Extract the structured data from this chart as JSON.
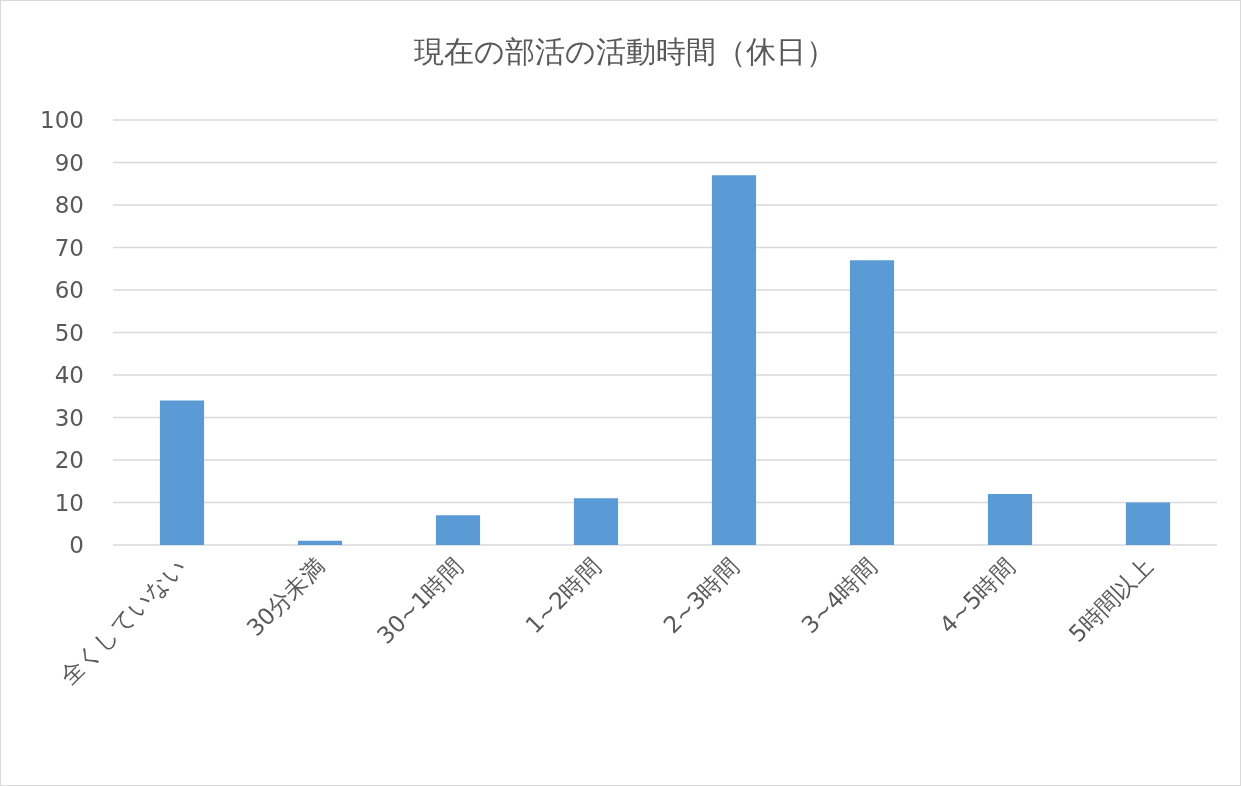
{
  "chart_data": {
    "type": "bar",
    "title": "現在の部活の活動時間（休日）",
    "categories": [
      "全くしていない",
      "30分未満",
      "30~1時間",
      "1~2時間",
      "2~3時間",
      "3~4時間",
      "4~5時間",
      "5時間以上"
    ],
    "values": [
      34,
      1,
      7,
      11,
      87,
      67,
      12,
      10
    ],
    "color": "#5b9bd5",
    "ylim": [
      0,
      100
    ],
    "yticks": [
      0,
      10,
      20,
      30,
      40,
      50,
      60,
      70,
      80,
      90,
      100
    ],
    "grid": "y"
  }
}
